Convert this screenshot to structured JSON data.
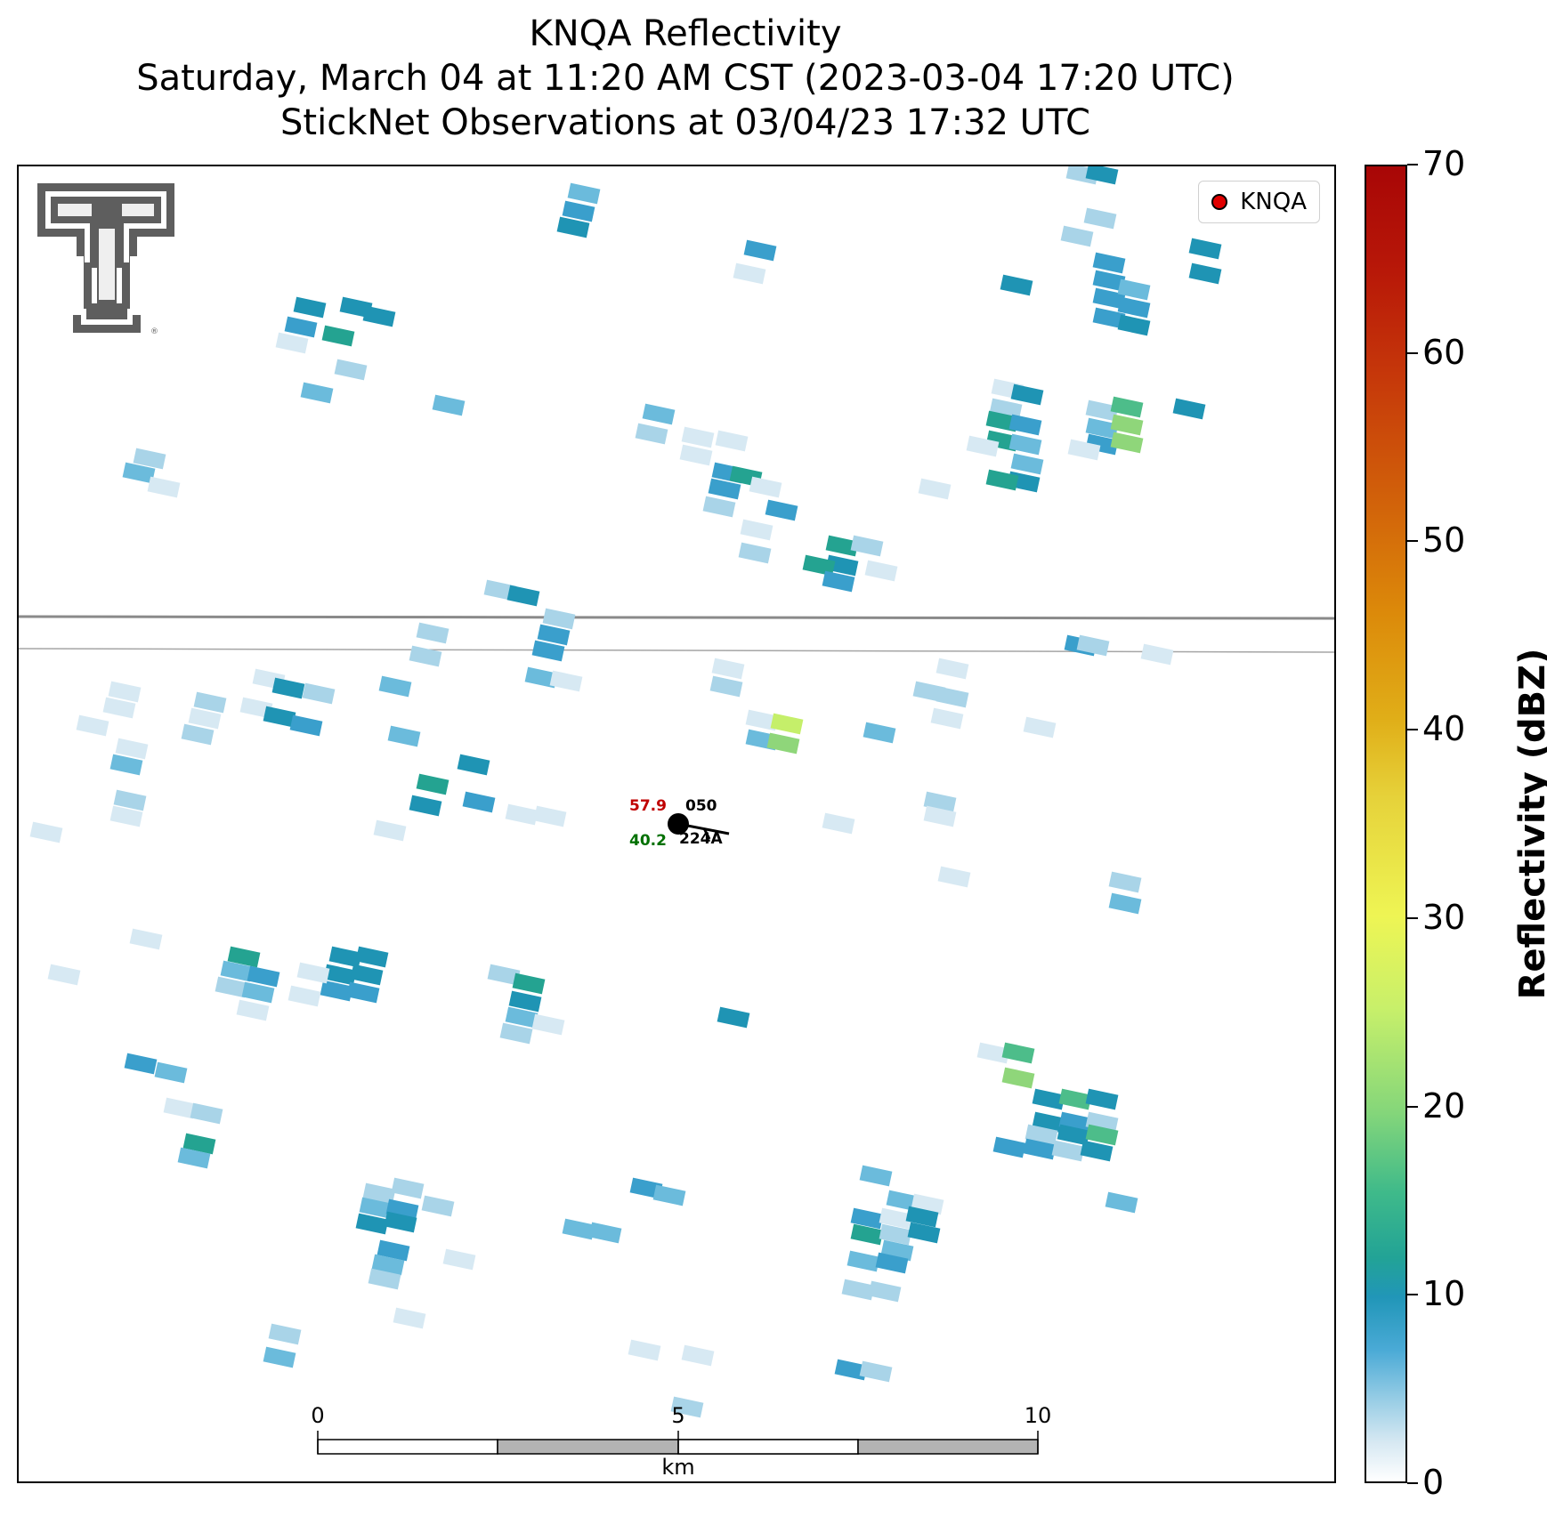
{
  "title": {
    "line1": "KNQA Reflectivity",
    "line2": "Saturday, March 04 at 11:20 AM CST (2023-03-04 17:20 UTC)",
    "line3": "StickNet Observations at 03/04/23 17:32 UTC"
  },
  "legend": {
    "label": "KNQA",
    "marker_color": "#e00000"
  },
  "logo": {
    "name": "Texas Tech Double T"
  },
  "scale_bar": {
    "unit_label": "km",
    "ticks": [
      "0",
      "5",
      "10"
    ]
  },
  "station": {
    "id": "050",
    "pressure": "224A",
    "temperature": "57.9",
    "dewpoint": "40.2",
    "temperature_color": "#c00000",
    "dewpoint_color": "#007000"
  },
  "colorbar": {
    "label": "Reflectivity (dBZ)",
    "ticks": [
      "0",
      "10",
      "20",
      "30",
      "40",
      "50",
      "60",
      "70"
    ],
    "min": 0,
    "max": 70
  }
}
